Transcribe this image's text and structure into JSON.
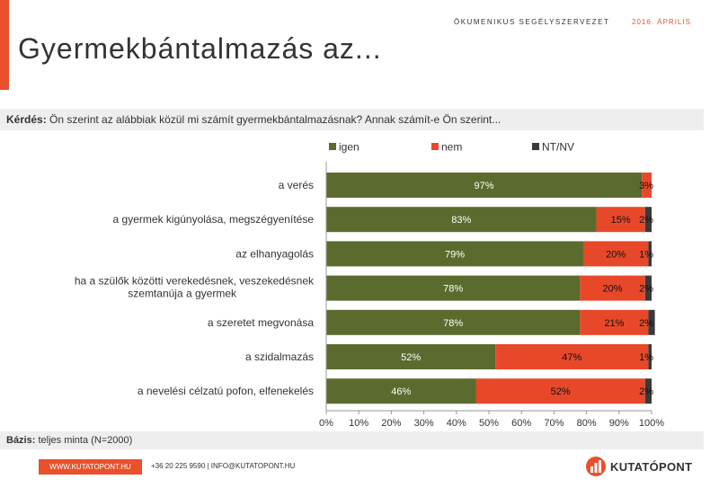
{
  "header": {
    "org": "ÖKUMENIKUS SEGÉLYSZERVEZET",
    "date": "2016. ÁPRILIS",
    "title": "Gyermekbántalmazás az..."
  },
  "question": {
    "label": "Kérdés:",
    "text": "Ön szerint az alábbiak közül mi számít gyermekbántalmazásnak? Annak számít-e Ön szerint..."
  },
  "basis": {
    "label": "Bázis:",
    "text": "teljes minta (N=2000)"
  },
  "footer": {
    "website": "WWW.KUTATOPONT.HU",
    "contact": "+36 20 225 9590   |   INFO@KUTATOPONT.HU",
    "logo_text": "KUTATÓPONT"
  },
  "colors": {
    "accent": "#e8512c",
    "igen": "#5b6b2e",
    "nem": "#e8482a",
    "ntnv": "#3a3a3a",
    "logo_dark": "#333333"
  },
  "chart_data": {
    "type": "bar",
    "orientation": "horizontal",
    "stacked": true,
    "categories": [
      "a verés",
      "a gyermek kigúnyolása, megszégyenítése",
      "az elhanyagolás",
      "ha a szülők közötti verekedésnek, veszekedésnek szemtanúja a gyermek",
      "a szeretet megvonása",
      "a szidalmazás",
      "a nevelési célzatú pofon, elfenekelés"
    ],
    "series": [
      {
        "name": "igen",
        "values": [
          97,
          83,
          79,
          78,
          78,
          52,
          46
        ]
      },
      {
        "name": "nem",
        "values": [
          3,
          15,
          20,
          20,
          21,
          47,
          52
        ]
      },
      {
        "name": "NT/NV",
        "values": [
          0,
          2,
          1,
          2,
          2,
          1,
          2
        ]
      }
    ],
    "data_labels": [
      [
        "97%",
        "3%",
        ""
      ],
      [
        "83%",
        "15%",
        "2%"
      ],
      [
        "79%",
        "20%",
        "1%"
      ],
      [
        "78%",
        "20%",
        "2%"
      ],
      [
        "78%",
        "21%",
        "2%"
      ],
      [
        "52%",
        "47%",
        "1%"
      ],
      [
        "46%",
        "52%",
        "2%"
      ]
    ],
    "xticks": [
      "0%",
      "10%",
      "20%",
      "30%",
      "40%",
      "50%",
      "60%",
      "70%",
      "80%",
      "90%",
      "100%"
    ],
    "xlim": [
      0,
      100
    ],
    "legend_position": "top",
    "grid": false
  }
}
